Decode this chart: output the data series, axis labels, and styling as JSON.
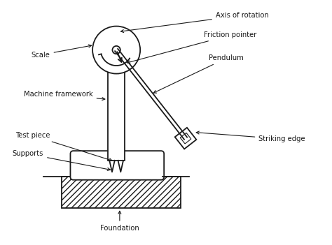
{
  "labels": {
    "axis_of_rotation": "Axis of rotation",
    "friction_pointer": "Friction pointer",
    "pendulum": "Pendulum",
    "scale": "Scale",
    "machine_framework": "Machine framework",
    "test_piece": "Test piece",
    "supports": "Supports",
    "striking_edge": "Striking edge",
    "foundation": "Foundation"
  },
  "colors": {
    "background": "#ffffff",
    "lines": "#1a1a1a",
    "text": "#1a1a1a"
  },
  "figsize": [
    4.74,
    3.51
  ],
  "dpi": 100
}
